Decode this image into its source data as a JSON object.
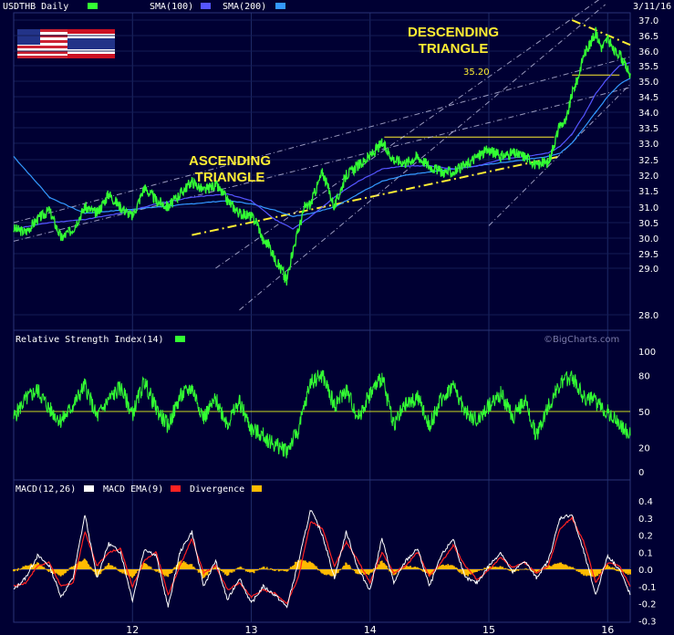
{
  "header": {
    "symbol": "USDTHB Daily",
    "sma100_label": "SMA(100)",
    "sma200_label": "SMA(200)",
    "date": "3/11/16"
  },
  "rsi_panel": {
    "label": "Relative Strength Index(14)",
    "watermark": "©BigCharts.com"
  },
  "macd_panel": {
    "label_macd": "MACD(12,26)",
    "label_ema": "MACD EMA(9)",
    "label_div": "Divergence"
  },
  "annotations": {
    "ascending_line1": "ASCENDING",
    "ascending_line2": "TRIANGLE",
    "descending_line1": "DESCENDING",
    "descending_line2": "TRIANGLE",
    "level_label": "35.20"
  },
  "colors": {
    "background": "#000033",
    "price": "#33ff33",
    "sma100": "#5555ff",
    "sma200": "#3399ff",
    "macd": "#ffffff",
    "macd_ema": "#ff2222",
    "divergence": "#ffbb00",
    "annotation": "#ffee33",
    "grid": "#1e2a66"
  },
  "icons": [
    "us-flag-icon",
    "thailand-flag-icon"
  ],
  "chart_data": [
    {
      "type": "line",
      "title": "USDTHB Daily",
      "ylim": [
        28.0,
        37.0
      ],
      "y_ticks": [
        "37.0",
        "36.5",
        "36.0",
        "35.5",
        "35.0",
        "34.5",
        "34.0",
        "33.5",
        "33.0",
        "32.5",
        "32.0",
        "31.5",
        "31.0",
        "30.5",
        "30.0",
        "29.5",
        "29.0",
        "28.0"
      ],
      "x_ticks": [
        "12",
        "13",
        "14",
        "15",
        "16"
      ],
      "x_tick_positions_years": [
        2012,
        2013,
        2014,
        2015,
        2016
      ],
      "x_range_years": [
        2011.0,
        2016.19
      ],
      "series": [
        {
          "name": "USDTHB Daily",
          "x": [
            2011.0,
            2011.1,
            2011.2,
            2011.3,
            2011.4,
            2011.5,
            2011.6,
            2011.7,
            2011.8,
            2011.9,
            2012.0,
            2012.1,
            2012.2,
            2012.3,
            2012.4,
            2012.5,
            2012.6,
            2012.7,
            2012.8,
            2012.9,
            2013.0,
            2013.05,
            2013.1,
            2013.15,
            2013.2,
            2013.25,
            2013.3,
            2013.35,
            2013.4,
            2013.45,
            2013.5,
            2013.55,
            2013.6,
            2013.7,
            2013.8,
            2013.9,
            2014.0,
            2014.1,
            2014.2,
            2014.3,
            2014.4,
            2014.5,
            2014.6,
            2014.7,
            2014.8,
            2014.9,
            2015.0,
            2015.1,
            2015.2,
            2015.3,
            2015.35,
            2015.4,
            2015.45,
            2015.5,
            2015.55,
            2015.6,
            2015.65,
            2015.7,
            2015.75,
            2015.8,
            2015.85,
            2015.9,
            2015.95,
            2016.0,
            2016.05,
            2016.1,
            2016.15,
            2016.19
          ],
          "y": [
            30.3,
            30.2,
            30.6,
            30.9,
            30.0,
            30.3,
            31.0,
            30.8,
            31.4,
            31.0,
            30.7,
            31.6,
            31.2,
            31.0,
            31.4,
            31.8,
            31.5,
            31.7,
            31.2,
            30.8,
            30.7,
            30.5,
            29.9,
            29.8,
            29.3,
            29.0,
            28.7,
            29.6,
            30.3,
            31.0,
            31.1,
            31.6,
            32.1,
            31.0,
            32.0,
            32.3,
            32.6,
            33.0,
            32.5,
            32.4,
            32.6,
            32.3,
            32.1,
            32.1,
            32.3,
            32.6,
            32.8,
            32.6,
            32.7,
            32.6,
            32.5,
            32.3,
            32.4,
            32.4,
            33.0,
            33.6,
            33.7,
            34.6,
            35.1,
            35.9,
            36.2,
            36.6,
            36.1,
            36.4,
            36.0,
            35.9,
            35.5,
            35.2
          ]
        },
        {
          "name": "SMA(100)",
          "x": [
            2011.0,
            2011.3,
            2011.6,
            2011.9,
            2012.2,
            2012.5,
            2012.8,
            2013.0,
            2013.2,
            2013.35,
            2013.5,
            2013.7,
            2013.9,
            2014.1,
            2014.3,
            2014.5,
            2014.7,
            2014.9,
            2015.1,
            2015.3,
            2015.5,
            2015.6,
            2015.7,
            2015.8,
            2015.9,
            2016.0,
            2016.1,
            2016.19
          ],
          "y": [
            30.3,
            30.5,
            30.6,
            30.8,
            31.1,
            31.3,
            31.4,
            31.2,
            30.6,
            30.3,
            30.7,
            31.3,
            31.8,
            32.2,
            32.3,
            32.3,
            32.2,
            32.3,
            32.5,
            32.6,
            32.7,
            32.9,
            33.3,
            33.9,
            34.6,
            35.1,
            35.5,
            35.6
          ]
        },
        {
          "name": "SMA(200)",
          "x": [
            2011.0,
            2011.3,
            2011.6,
            2011.9,
            2012.2,
            2012.5,
            2012.8,
            2013.0,
            2013.2,
            2013.35,
            2013.5,
            2013.7,
            2013.9,
            2014.1,
            2014.3,
            2014.5,
            2014.7,
            2014.9,
            2015.1,
            2015.3,
            2015.5,
            2015.6,
            2015.7,
            2015.8,
            2015.9,
            2016.0,
            2016.1,
            2016.19
          ],
          "y": [
            32.6,
            31.3,
            30.8,
            30.9,
            31.0,
            31.1,
            31.2,
            31.1,
            30.9,
            30.7,
            30.8,
            31.0,
            31.4,
            31.8,
            32.0,
            32.1,
            32.2,
            32.3,
            32.4,
            32.5,
            32.6,
            32.7,
            33.0,
            33.5,
            34.0,
            34.5,
            34.9,
            35.1
          ]
        }
      ],
      "trend_lines": [
        {
          "kind": "resistance",
          "style": "solid",
          "x": [
            2014.12,
            2015.55
          ],
          "y": [
            33.2,
            33.2
          ]
        },
        {
          "kind": "resistance",
          "style": "solid",
          "x": [
            2015.7,
            2016.1
          ],
          "y": [
            35.2,
            35.2
          ]
        },
        {
          "kind": "support",
          "style": "dash-dot",
          "x": [
            2012.5,
            2015.6
          ],
          "y": [
            30.1,
            32.6
          ]
        },
        {
          "kind": "resistance",
          "style": "dash-dot",
          "x": [
            2015.7,
            2016.19
          ],
          "y": [
            37.0,
            36.2
          ]
        },
        {
          "kind": "channel",
          "style": "dash-dot",
          "x": [
            2012.9,
            2015.98
          ],
          "y": [
            28.1,
            37.5
          ]
        },
        {
          "kind": "channel",
          "style": "dash-dot",
          "x": [
            2012.7,
            2015.98
          ],
          "y": [
            29.0,
            37.8
          ]
        },
        {
          "kind": "channel",
          "style": "dash-dot",
          "x": [
            2015.0,
            2016.19
          ],
          "y": [
            30.4,
            34.9
          ]
        },
        {
          "kind": "channel",
          "style": "dash-dot",
          "x": [
            2011.0,
            2016.19
          ],
          "y": [
            30.5,
            35.8
          ]
        },
        {
          "kind": "channel",
          "style": "dash-dot",
          "x": [
            2011.0,
            2016.19
          ],
          "y": [
            29.9,
            34.8
          ]
        }
      ]
    },
    {
      "type": "line",
      "title": "Relative Strength Index(14)",
      "ylim": [
        0,
        100
      ],
      "y_ticks": [
        "100",
        "80",
        "50",
        "20",
        "0"
      ],
      "reference_lines": [
        50
      ],
      "series": [
        {
          "name": "Relative Strength Index(14)",
          "x": [
            2011.0,
            2011.1,
            2011.2,
            2011.3,
            2011.4,
            2011.5,
            2011.6,
            2011.7,
            2011.8,
            2011.9,
            2012.0,
            2012.1,
            2012.2,
            2012.3,
            2012.4,
            2012.5,
            2012.6,
            2012.7,
            2012.8,
            2012.9,
            2013.0,
            2013.1,
            2013.2,
            2013.3,
            2013.4,
            2013.5,
            2013.6,
            2013.7,
            2013.8,
            2013.9,
            2014.0,
            2014.1,
            2014.2,
            2014.3,
            2014.4,
            2014.5,
            2014.6,
            2014.7,
            2014.8,
            2014.9,
            2015.0,
            2015.1,
            2015.2,
            2015.3,
            2015.4,
            2015.5,
            2015.6,
            2015.7,
            2015.8,
            2015.9,
            2016.0,
            2016.1,
            2016.19
          ],
          "y": [
            45,
            60,
            68,
            52,
            42,
            55,
            72,
            45,
            60,
            70,
            48,
            75,
            52,
            38,
            62,
            70,
            45,
            60,
            40,
            58,
            35,
            30,
            22,
            18,
            35,
            75,
            80,
            55,
            68,
            45,
            65,
            78,
            40,
            55,
            62,
            38,
            60,
            72,
            50,
            42,
            55,
            65,
            45,
            60,
            30,
            55,
            72,
            80,
            62,
            58,
            50,
            40,
            30
          ]
        }
      ]
    },
    {
      "type": "line",
      "title": "MACD(12,26)",
      "ylim": [
        -0.3,
        0.4
      ],
      "y_ticks": [
        "0.4",
        "0.3",
        "0.2",
        "0.1",
        "0.0",
        "-0.1",
        "-0.2",
        "-0.3"
      ],
      "series": [
        {
          "name": "MACD(12,26)",
          "x": [
            2011.0,
            2011.1,
            2011.2,
            2011.3,
            2011.4,
            2011.5,
            2011.6,
            2011.7,
            2011.8,
            2011.9,
            2012.0,
            2012.1,
            2012.2,
            2012.3,
            2012.4,
            2012.5,
            2012.6,
            2012.7,
            2012.8,
            2012.9,
            2013.0,
            2013.1,
            2013.2,
            2013.3,
            2013.4,
            2013.5,
            2013.6,
            2013.7,
            2013.8,
            2013.9,
            2014.0,
            2014.1,
            2014.2,
            2014.3,
            2014.4,
            2014.5,
            2014.6,
            2014.7,
            2014.8,
            2014.9,
            2015.0,
            2015.1,
            2015.2,
            2015.3,
            2015.4,
            2015.5,
            2015.6,
            2015.7,
            2015.8,
            2015.9,
            2016.0,
            2016.1,
            2016.19
          ],
          "y": [
            -0.12,
            -0.05,
            0.08,
            0.02,
            -0.16,
            -0.05,
            0.32,
            -0.05,
            0.15,
            0.1,
            -0.18,
            0.12,
            0.08,
            -0.22,
            0.1,
            0.22,
            -0.1,
            0.05,
            -0.18,
            -0.05,
            -0.2,
            -0.1,
            -0.15,
            -0.22,
            0.05,
            0.35,
            0.2,
            -0.05,
            0.22,
            0.0,
            -0.12,
            0.18,
            -0.08,
            0.05,
            0.12,
            -0.1,
            0.08,
            0.18,
            -0.05,
            -0.08,
            0.02,
            0.1,
            -0.02,
            0.05,
            -0.05,
            0.05,
            0.3,
            0.32,
            0.1,
            -0.15,
            0.08,
            0.0,
            -0.15
          ]
        },
        {
          "name": "MACD EMA(9)",
          "x": [
            2011.0,
            2011.1,
            2011.2,
            2011.3,
            2011.4,
            2011.5,
            2011.6,
            2011.7,
            2011.8,
            2011.9,
            2012.0,
            2012.1,
            2012.2,
            2012.3,
            2012.4,
            2012.5,
            2012.6,
            2012.7,
            2012.8,
            2012.9,
            2013.0,
            2013.1,
            2013.2,
            2013.3,
            2013.4,
            2013.5,
            2013.6,
            2013.7,
            2013.8,
            2013.9,
            2014.0,
            2014.1,
            2014.2,
            2014.3,
            2014.4,
            2014.5,
            2014.6,
            2014.7,
            2014.8,
            2014.9,
            2015.0,
            2015.1,
            2015.2,
            2015.3,
            2015.4,
            2015.5,
            2015.6,
            2015.7,
            2015.8,
            2015.9,
            2016.0,
            2016.1,
            2016.19
          ],
          "y": [
            -0.1,
            -0.08,
            0.02,
            0.04,
            -0.1,
            -0.08,
            0.22,
            0.02,
            0.1,
            0.12,
            -0.1,
            0.05,
            0.1,
            -0.15,
            0.02,
            0.18,
            -0.02,
            0.02,
            -0.12,
            -0.08,
            -0.16,
            -0.12,
            -0.14,
            -0.2,
            -0.04,
            0.28,
            0.24,
            0.02,
            0.16,
            0.05,
            -0.08,
            0.1,
            -0.02,
            0.02,
            0.1,
            -0.04,
            0.04,
            0.14,
            0.02,
            -0.06,
            0.0,
            0.07,
            0.01,
            0.04,
            -0.02,
            0.02,
            0.24,
            0.3,
            0.16,
            -0.08,
            0.04,
            0.02,
            -0.1
          ]
        }
      ],
      "divergence": {
        "name": "Divergence",
        "note": "Histogram = MACD minus MACD EMA(9)"
      }
    }
  ]
}
